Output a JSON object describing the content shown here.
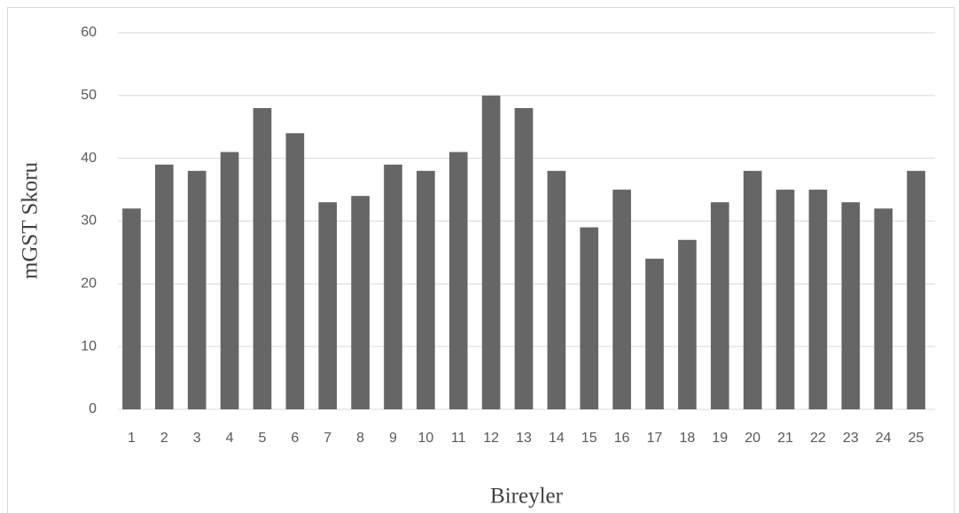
{
  "chart_data": {
    "type": "bar",
    "x_label": "Bireyler",
    "y_label": "mGST Skoru",
    "categories": [
      "1",
      "2",
      "3",
      "4",
      "5",
      "6",
      "7",
      "8",
      "9",
      "10",
      "11",
      "12",
      "13",
      "14",
      "15",
      "16",
      "17",
      "18",
      "19",
      "20",
      "21",
      "22",
      "23",
      "24",
      "25"
    ],
    "values": [
      32,
      39,
      38,
      41,
      48,
      44,
      33,
      34,
      39,
      38,
      41,
      50,
      48,
      38,
      29,
      35,
      24,
      27,
      33,
      38,
      35,
      35,
      33,
      32,
      38
    ],
    "color": "#666666",
    "ylim": [
      0,
      60
    ],
    "yticks": [
      0,
      10,
      20,
      30,
      40,
      50,
      60
    ],
    "grid": true
  }
}
